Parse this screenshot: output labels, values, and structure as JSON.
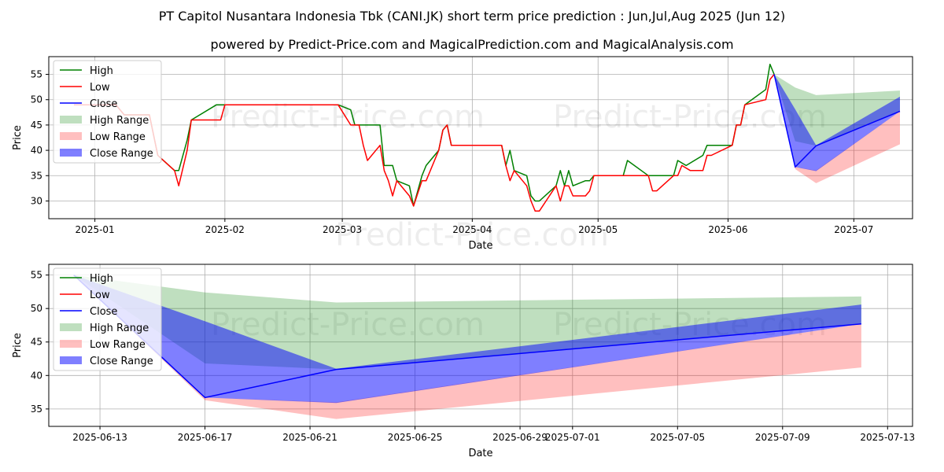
{
  "title": "PT Capitol Nusantara Indonesia Tbk (CANI.JK) short term price prediction : Jun,Jul,Aug 2025 (Jun 12)",
  "subtitle": "powered by Predict-Price.com and MagicalPrediction.com and MagicalAnalysis.com",
  "watermark": "Predict-Price.com",
  "colors": {
    "high": "#008000",
    "low": "#ff0000",
    "close": "#0000ff",
    "high_range": "#008000",
    "low_range": "#ff0000",
    "close_range": "#0000ff",
    "grid": "#b0b0b0",
    "axis": "#000000"
  },
  "legend": [
    "High",
    "Low",
    "Close",
    "High Range",
    "Low Range",
    "Close Range"
  ],
  "chart_data": [
    {
      "type": "line",
      "xlabel": "Date",
      "ylabel": "Price",
      "xlim": [
        "2024-12-21",
        "2025-07-15"
      ],
      "ylim": [
        26.5,
        58.5
      ],
      "xticks": [
        "2025-01-01",
        "2025-02-01",
        "2025-03-01",
        "2025-04-01",
        "2025-05-01",
        "2025-06-01",
        "2025-07-01"
      ],
      "xtick_labels": [
        "2025-01",
        "2025-02",
        "2025-03",
        "2025-04",
        "2025-05",
        "2025-06",
        "2025-07"
      ],
      "yticks": [
        30,
        35,
        40,
        45,
        50,
        55
      ],
      "grid": true,
      "legend_position": "upper-left",
      "series": [
        {
          "name": "High",
          "points": [
            [
              "2024-12-27",
              49
            ],
            [
              "2025-01-06",
              49
            ],
            [
              "2025-01-08",
              47
            ],
            [
              "2025-01-14",
              47
            ],
            [
              "2025-01-16",
              39
            ],
            [
              "2025-01-20",
              36
            ],
            [
              "2025-01-21",
              36
            ],
            [
              "2025-01-23",
              42
            ],
            [
              "2025-01-24",
              46
            ],
            [
              "2025-01-30",
              49
            ],
            [
              "2025-02-28",
              49
            ],
            [
              "2025-03-03",
              48
            ],
            [
              "2025-03-04",
              45
            ],
            [
              "2025-03-10",
              45
            ],
            [
              "2025-03-11",
              37
            ],
            [
              "2025-03-13",
              37
            ],
            [
              "2025-03-14",
              34
            ],
            [
              "2025-03-17",
              33
            ],
            [
              "2025-03-18",
              29
            ],
            [
              "2025-03-20",
              35
            ],
            [
              "2025-03-21",
              37
            ],
            [
              "2025-03-24",
              40
            ],
            [
              "2025-03-25",
              44
            ],
            [
              "2025-03-26",
              45
            ],
            [
              "2025-03-27",
              41
            ],
            [
              "2025-04-08",
              41
            ],
            [
              "2025-04-09",
              37
            ],
            [
              "2025-04-10",
              40
            ],
            [
              "2025-04-11",
              36
            ],
            [
              "2025-04-14",
              35
            ],
            [
              "2025-04-15",
              31
            ],
            [
              "2025-04-16",
              30
            ],
            [
              "2025-04-17",
              30
            ],
            [
              "2025-04-21",
              33
            ],
            [
              "2025-04-22",
              36
            ],
            [
              "2025-04-23",
              33
            ],
            [
              "2025-04-24",
              36
            ],
            [
              "2025-04-25",
              33
            ],
            [
              "2025-04-28",
              34
            ],
            [
              "2025-04-29",
              34
            ],
            [
              "2025-04-30",
              35
            ],
            [
              "2025-05-07",
              35
            ],
            [
              "2025-05-08",
              38
            ],
            [
              "2025-05-13",
              35
            ],
            [
              "2025-05-19",
              35
            ],
            [
              "2025-05-20",
              38
            ],
            [
              "2025-05-22",
              37
            ],
            [
              "2025-05-26",
              39
            ],
            [
              "2025-05-27",
              41
            ],
            [
              "2025-06-02",
              41
            ],
            [
              "2025-06-03",
              45
            ],
            [
              "2025-06-04",
              45
            ],
            [
              "2025-06-05",
              49
            ],
            [
              "2025-06-10",
              52
            ],
            [
              "2025-06-11",
              57
            ],
            [
              "2025-06-12",
              55
            ]
          ]
        },
        {
          "name": "Low",
          "points": [
            [
              "2024-12-27",
              49
            ],
            [
              "2025-01-06",
              49
            ],
            [
              "2025-01-08",
              47
            ],
            [
              "2025-01-14",
              47
            ],
            [
              "2025-01-16",
              39
            ],
            [
              "2025-01-20",
              36
            ],
            [
              "2025-01-21",
              33
            ],
            [
              "2025-01-23",
              40
            ],
            [
              "2025-01-24",
              46
            ],
            [
              "2025-01-31",
              46
            ],
            [
              "2025-02-01",
              49
            ],
            [
              "2025-02-28",
              49
            ],
            [
              "2025-03-03",
              45
            ],
            [
              "2025-03-05",
              45
            ],
            [
              "2025-03-06",
              41
            ],
            [
              "2025-03-07",
              38
            ],
            [
              "2025-03-10",
              41
            ],
            [
              "2025-03-11",
              36
            ],
            [
              "2025-03-12",
              34
            ],
            [
              "2025-03-13",
              31
            ],
            [
              "2025-03-14",
              34
            ],
            [
              "2025-03-17",
              31
            ],
            [
              "2025-03-18",
              29
            ],
            [
              "2025-03-20",
              34
            ],
            [
              "2025-03-21",
              34
            ],
            [
              "2025-03-24",
              40
            ],
            [
              "2025-03-25",
              44
            ],
            [
              "2025-03-26",
              45
            ],
            [
              "2025-03-27",
              41
            ],
            [
              "2025-04-08",
              41
            ],
            [
              "2025-04-09",
              37
            ],
            [
              "2025-04-10",
              34
            ],
            [
              "2025-04-11",
              36
            ],
            [
              "2025-04-14",
              33
            ],
            [
              "2025-04-15",
              30
            ],
            [
              "2025-04-16",
              28
            ],
            [
              "2025-04-17",
              28
            ],
            [
              "2025-04-21",
              33
            ],
            [
              "2025-04-22",
              30
            ],
            [
              "2025-04-23",
              33
            ],
            [
              "2025-04-24",
              33
            ],
            [
              "2025-04-25",
              31
            ],
            [
              "2025-04-28",
              31
            ],
            [
              "2025-04-29",
              32
            ],
            [
              "2025-04-30",
              35
            ],
            [
              "2025-05-13",
              35
            ],
            [
              "2025-05-14",
              32
            ],
            [
              "2025-05-15",
              32
            ],
            [
              "2025-05-19",
              35
            ],
            [
              "2025-05-20",
              35
            ],
            [
              "2025-05-21",
              37
            ],
            [
              "2025-05-23",
              36
            ],
            [
              "2025-05-26",
              36
            ],
            [
              "2025-05-27",
              39
            ],
            [
              "2025-05-28",
              39
            ],
            [
              "2025-06-02",
              41
            ],
            [
              "2025-06-03",
              45
            ],
            [
              "2025-06-04",
              45
            ],
            [
              "2025-06-05",
              49
            ],
            [
              "2025-06-10",
              50
            ],
            [
              "2025-06-11",
              54
            ],
            [
              "2025-06-12",
              55
            ]
          ]
        },
        {
          "name": "Close",
          "points": [
            [
              "2025-06-12",
              55
            ],
            [
              "2025-06-17",
              36.7
            ],
            [
              "2025-06-22",
              40.9
            ],
            [
              "2025-07-12",
              47.7
            ]
          ]
        }
      ],
      "bands": [
        {
          "name": "High Range",
          "x": [
            "2025-06-12",
            "2025-06-17",
            "2025-06-22",
            "2025-07-12"
          ],
          "upper": [
            55,
            52.4,
            50.9,
            51.8
          ],
          "lower": [
            55,
            41.8,
            40.9,
            47.7
          ]
        },
        {
          "name": "Low Range",
          "x": [
            "2025-06-12",
            "2025-06-17",
            "2025-06-22",
            "2025-07-12"
          ],
          "upper": [
            55,
            36.7,
            36.0,
            47.7
          ],
          "lower": [
            55,
            36.3,
            33.5,
            41.2
          ]
        },
        {
          "name": "Close Range",
          "x": [
            "2025-06-12",
            "2025-06-17",
            "2025-06-22",
            "2025-07-12"
          ],
          "upper": [
            55,
            48.1,
            41.0,
            50.6
          ],
          "lower": [
            55,
            36.7,
            35.9,
            47.7
          ]
        }
      ]
    },
    {
      "type": "line",
      "xlabel": "Date",
      "ylabel": "Price",
      "xlim": [
        "2025-06-11.05",
        "2025-07-13.95"
      ],
      "ylim": [
        32.4,
        56.6
      ],
      "xticks": [
        "2025-06-13",
        "2025-06-17",
        "2025-06-21",
        "2025-06-25",
        "2025-06-29",
        "2025-07-01",
        "2025-07-05",
        "2025-07-09",
        "2025-07-13"
      ],
      "xtick_labels": [
        "2025-06-13",
        "2025-06-17",
        "2025-06-21",
        "2025-06-25",
        "2025-06-29",
        "2025-07-01",
        "2025-07-05",
        "2025-07-09",
        "2025-07-13"
      ],
      "yticks": [
        35,
        40,
        45,
        50,
        55
      ],
      "grid": true,
      "legend_position": "upper-left",
      "series": [
        {
          "name": "Close",
          "points": [
            [
              "2025-06-12",
              55
            ],
            [
              "2025-06-17",
              36.7
            ],
            [
              "2025-06-22",
              40.9
            ],
            [
              "2025-07-12",
              47.7
            ]
          ]
        }
      ],
      "bands": [
        {
          "name": "High Range",
          "x": [
            "2025-06-12",
            "2025-06-17",
            "2025-06-22",
            "2025-07-12"
          ],
          "upper": [
            55,
            52.4,
            50.9,
            51.8
          ],
          "lower": [
            55,
            41.8,
            40.9,
            47.7
          ]
        },
        {
          "name": "Low Range",
          "x": [
            "2025-06-12",
            "2025-06-17",
            "2025-06-22",
            "2025-07-12"
          ],
          "upper": [
            55,
            36.7,
            36.0,
            47.7
          ],
          "lower": [
            55,
            36.3,
            33.5,
            41.2
          ]
        },
        {
          "name": "Close Range",
          "x": [
            "2025-06-12",
            "2025-06-17",
            "2025-06-22",
            "2025-07-12"
          ],
          "upper": [
            55,
            48.1,
            41.0,
            50.6
          ],
          "lower": [
            55,
            36.7,
            35.9,
            47.7
          ]
        }
      ]
    }
  ]
}
